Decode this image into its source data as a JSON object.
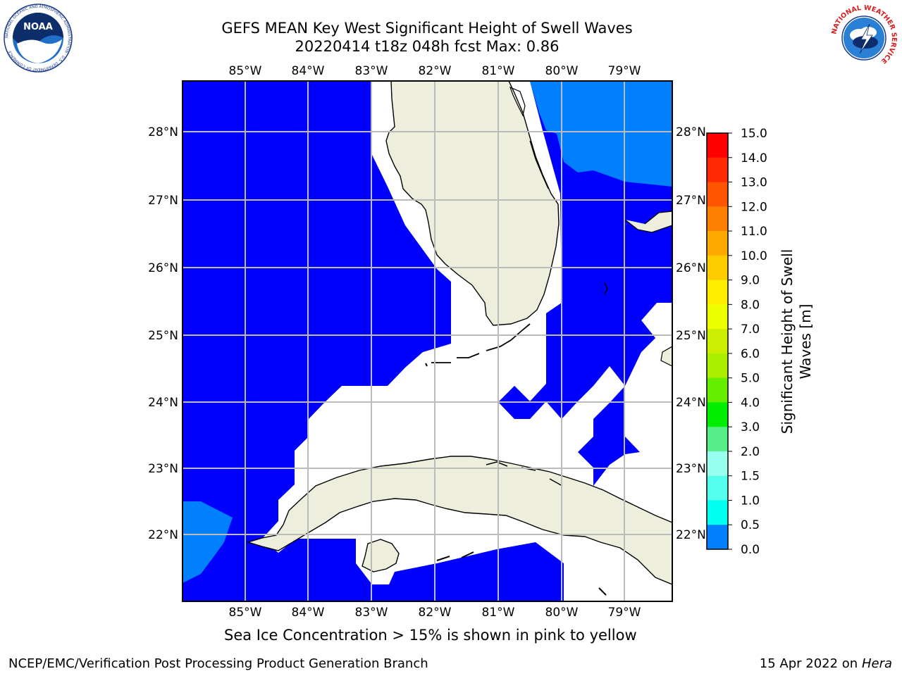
{
  "header": {
    "title_line1": "GEFS MEAN Key West Significant Height of Swell Waves",
    "title_line2": "20220414 t18z 048h fcst   Max: 0.86"
  },
  "map": {
    "lon_labels": [
      "85°W",
      "84°W",
      "83°W",
      "82°W",
      "81°W",
      "80°W",
      "79°W"
    ],
    "lat_labels": [
      "28°N",
      "27°N",
      "26°N",
      "25°N",
      "24°N",
      "23°N",
      "22°N"
    ],
    "colors": {
      "ocean_low": "#0000ff",
      "ocean_mid": "#0080ff",
      "land": "#eeeedd",
      "no_data": "#ffffff",
      "grid": "#bbbbbb"
    }
  },
  "colorbar": {
    "label": "Significant Height of Swell Waves [m]",
    "label_line1": "Significant Height of Swell",
    "label_line2": "Waves [m]",
    "ticks": [
      "15.0",
      "14.0",
      "13.0",
      "12.0",
      "11.0",
      "10.0",
      "9.0",
      "8.0",
      "7.0",
      "6.0",
      "5.0",
      "4.0",
      "3.0",
      "2.0",
      "1.5",
      "1.0",
      "0.5",
      "0.0"
    ],
    "colors_top_to_bottom": [
      "#ff0000",
      "#ff2a00",
      "#ff5500",
      "#ff8000",
      "#ffaa00",
      "#ffcc00",
      "#ffee00",
      "#eeff00",
      "#ccee00",
      "#aaee00",
      "#66ee00",
      "#00ee00",
      "#55ee88",
      "#99ffee",
      "#55ffee",
      "#00ffee",
      "#0080ff",
      "#0000ff"
    ]
  },
  "caption": "Sea Ice Concentration > 15% is shown in pink to yellow",
  "footer": {
    "left": "NCEP/EMC/Verification Post Processing Product Generation Branch",
    "date_text": "15 Apr 2022 on ",
    "host": "Hera"
  },
  "logos": {
    "noaa": {
      "text": "NOAA",
      "ring_text": "NATIONAL OCEANIC AND ATMOSPHERIC ADMINISTRATION · U.S. DEPARTMENT OF COMMERCE"
    },
    "nws": {
      "ring_text": "NATIONAL WEATHER SERVICE"
    }
  }
}
